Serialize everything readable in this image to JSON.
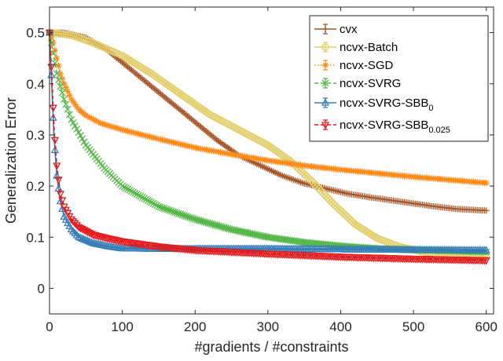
{
  "chart_data": {
    "type": "line",
    "title": "",
    "xlabel": "#gradients / #constraints",
    "ylabel": "Generalization Error",
    "xlim": [
      0,
      610
    ],
    "ylim": [
      -0.05,
      0.55
    ],
    "xticks": [
      0,
      100,
      200,
      300,
      400,
      500,
      600
    ],
    "yticks": [
      0,
      0.1,
      0.2,
      0.3,
      0.4,
      0.5
    ],
    "grid": false,
    "legend_position": "top-right",
    "series": [
      {
        "name": "cvx",
        "legend_main": "cvx",
        "legend_sub": "",
        "color": "#a65628",
        "marker": "plus",
        "line_style": "solid",
        "x": [
          0,
          20,
          50,
          80,
          110,
          140,
          170,
          200,
          230,
          260,
          290,
          320,
          350,
          380,
          410,
          440,
          470,
          500,
          530,
          560,
          600
        ],
        "y": [
          0.5,
          0.5,
          0.49,
          0.465,
          0.43,
          0.395,
          0.36,
          0.325,
          0.29,
          0.26,
          0.24,
          0.22,
          0.205,
          0.195,
          0.185,
          0.178,
          0.172,
          0.166,
          0.16,
          0.155,
          0.152
        ]
      },
      {
        "name": "ncvx-Batch",
        "legend_main": "ncvx-Batch",
        "legend_sub": "",
        "color": "#e2cf6b",
        "marker": "circle",
        "line_style": "solid",
        "x": [
          0,
          30,
          60,
          100,
          140,
          180,
          220,
          260,
          300,
          330,
          360,
          390,
          420,
          450,
          480,
          510,
          540,
          570,
          600
        ],
        "y": [
          0.5,
          0.495,
          0.48,
          0.455,
          0.42,
          0.38,
          0.34,
          0.31,
          0.28,
          0.25,
          0.21,
          0.165,
          0.125,
          0.098,
          0.082,
          0.072,
          0.066,
          0.063,
          0.062
        ]
      },
      {
        "name": "ncvx-SGD",
        "legend_main": "ncvx-SGD",
        "legend_sub": "",
        "color": "#ff8c1a",
        "marker": "asterisk",
        "line_style": "dotted",
        "x": [
          0,
          5,
          10,
          15,
          20,
          30,
          40,
          50,
          70,
          100,
          150,
          200,
          250,
          300,
          350,
          400,
          450,
          500,
          550,
          600
        ],
        "y": [
          0.5,
          0.48,
          0.45,
          0.42,
          0.4,
          0.37,
          0.35,
          0.338,
          0.323,
          0.31,
          0.292,
          0.275,
          0.262,
          0.25,
          0.24,
          0.232,
          0.225,
          0.218,
          0.212,
          0.206
        ]
      },
      {
        "name": "ncvx-SVRG",
        "legend_main": "ncvx-SVRG",
        "legend_sub": "",
        "color": "#55b748",
        "marker": "x",
        "line_style": "dashed",
        "x": [
          0,
          5,
          10,
          20,
          30,
          50,
          75,
          100,
          150,
          200,
          250,
          300,
          350,
          400,
          450,
          500,
          550,
          600
        ],
        "y": [
          0.5,
          0.46,
          0.42,
          0.37,
          0.33,
          0.28,
          0.235,
          0.2,
          0.16,
          0.135,
          0.115,
          0.1,
          0.09,
          0.083,
          0.078,
          0.075,
          0.073,
          0.071
        ]
      },
      {
        "name": "ncvx-SVRG-SBB0",
        "legend_main": "ncvx-SVRG-SBB",
        "legend_sub": "0",
        "color": "#377eb8",
        "marker": "triangle-up",
        "line_style": "solid",
        "x": [
          0,
          3,
          6,
          10,
          15,
          20,
          30,
          40,
          60,
          80,
          100,
          150,
          200,
          300,
          400,
          500,
          600
        ],
        "y": [
          0.5,
          0.4,
          0.3,
          0.22,
          0.17,
          0.14,
          0.115,
          0.1,
          0.088,
          0.082,
          0.078,
          0.077,
          0.077,
          0.077,
          0.076,
          0.075,
          0.074
        ]
      },
      {
        "name": "ncvx-SVRG-SBB0.025",
        "legend_main": "ncvx-SVRG-SBB",
        "legend_sub": "0.025",
        "color": "#e41a1c",
        "marker": "triangle-down",
        "line_style": "dashed",
        "x": [
          0,
          3,
          6,
          10,
          15,
          20,
          30,
          40,
          60,
          80,
          100,
          150,
          200,
          300,
          400,
          500,
          600
        ],
        "y": [
          0.5,
          0.42,
          0.32,
          0.24,
          0.185,
          0.16,
          0.135,
          0.12,
          0.105,
          0.098,
          0.092,
          0.082,
          0.075,
          0.068,
          0.062,
          0.058,
          0.055
        ]
      }
    ]
  }
}
